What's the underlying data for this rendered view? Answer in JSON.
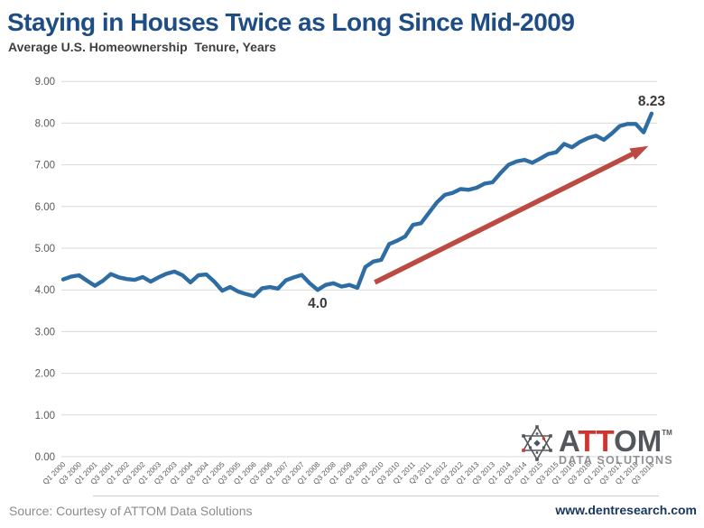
{
  "header": {
    "title": "Staying in Houses Twice as Long Since Mid-2009",
    "subtitle": "Average U.S. Homeownership  Tenure, Years"
  },
  "chart_data": {
    "type": "line",
    "title": "Staying in Houses Twice as Long Since Mid-2009",
    "subtitle": "Average U.S. Homeownership  Tenure, Years",
    "series_name": "Average U.S. Homeownership Tenure, Years",
    "x": [
      "Q1 2000",
      "Q2 2000",
      "Q3 2000",
      "Q4 2000",
      "Q1 2001",
      "Q2 2001",
      "Q3 2001",
      "Q4 2001",
      "Q1 2002",
      "Q2 2002",
      "Q3 2002",
      "Q4 2002",
      "Q1 2003",
      "Q2 2003",
      "Q3 2003",
      "Q4 2003",
      "Q1 2004",
      "Q2 2004",
      "Q3 2004",
      "Q4 2004",
      "Q1 2005",
      "Q2 2005",
      "Q3 2005",
      "Q4 2005",
      "Q1 2006",
      "Q2 2006",
      "Q3 2006",
      "Q4 2006",
      "Q1 2007",
      "Q2 2007",
      "Q3 2007",
      "Q4 2007",
      "Q1 2008",
      "Q2 2008",
      "Q3 2008",
      "Q4 2008",
      "Q1 2009",
      "Q2 2009",
      "Q3 2009",
      "Q4 2009",
      "Q1 2010",
      "Q2 2010",
      "Q3 2010",
      "Q4 2010",
      "Q1 2011",
      "Q2 2011",
      "Q3 2011",
      "Q4 2011",
      "Q1 2012",
      "Q2 2012",
      "Q3 2012",
      "Q4 2012",
      "Q1 2013",
      "Q2 2013",
      "Q3 2013",
      "Q4 2013",
      "Q1 2014",
      "Q2 2014",
      "Q3 2014",
      "Q4 2014",
      "Q1 2015",
      "Q2 2015",
      "Q3 2015",
      "Q4 2015",
      "Q1 2016",
      "Q2 2016",
      "Q3 2016",
      "Q4 2016",
      "Q1 2017",
      "Q2 2017",
      "Q3 2017",
      "Q4 2017",
      "Q1 2018",
      "Q2 2018",
      "Q3 2018"
    ],
    "values": [
      4.25,
      4.32,
      4.35,
      4.22,
      4.1,
      4.22,
      4.38,
      4.3,
      4.26,
      4.24,
      4.31,
      4.2,
      4.3,
      4.39,
      4.44,
      4.35,
      4.18,
      4.35,
      4.37,
      4.2,
      3.98,
      4.07,
      3.96,
      3.9,
      3.85,
      4.04,
      4.07,
      4.03,
      4.23,
      4.3,
      4.36,
      4.16,
      4.0,
      4.12,
      4.16,
      4.08,
      4.12,
      4.05,
      4.55,
      4.68,
      4.72,
      5.1,
      5.18,
      5.28,
      5.56,
      5.6,
      5.85,
      6.1,
      6.28,
      6.33,
      6.42,
      6.4,
      6.45,
      6.55,
      6.58,
      6.8,
      7.0,
      7.08,
      7.12,
      7.05,
      7.15,
      7.26,
      7.3,
      7.5,
      7.42,
      7.55,
      7.64,
      7.7,
      7.6,
      7.75,
      7.93,
      7.98,
      7.98,
      7.78,
      8.23
    ],
    "ylim": [
      0,
      9
    ],
    "y_tick_labels": [
      "0.00",
      "1.00",
      "2.00",
      "3.00",
      "4.00",
      "5.00",
      "6.00",
      "7.00",
      "8.00",
      "9.00"
    ],
    "x_tick_every": 2,
    "grid": "horizontal",
    "legend": "none",
    "annotations": [
      {
        "label": "4.0",
        "index": 32,
        "value": 4.0,
        "position": "below"
      },
      {
        "label": "8.23",
        "index": 74,
        "value": 8.23,
        "position": "above"
      }
    ],
    "trend_arrow": {
      "from_index": 39.2,
      "from_value": 4.18,
      "to_index": 73.6,
      "to_value": 7.45
    }
  },
  "colors": {
    "title": "#1e4c85",
    "subtitle": "#3f3f3f",
    "line": "#2e6da4",
    "arrow": "#bd4a42",
    "grid": "#d9d9d9",
    "axis_text": "#595959",
    "annotation": "#3a3a3a",
    "source_text": "#8c8c8c",
    "website_text": "#17365d",
    "logo_gray": "#53565a",
    "logo_red": "#d2332c",
    "logo_tagline": "#8f9194"
  },
  "logo": {
    "part_a": "A",
    "part_tt": "TT",
    "part_om": "OM",
    "trademark": "TM",
    "tagline": "DATA SOLUTIONS"
  },
  "footer": {
    "source": "Source: Courtesy of ATTOM Data Solutions",
    "website": "www.dentresearch.com"
  }
}
